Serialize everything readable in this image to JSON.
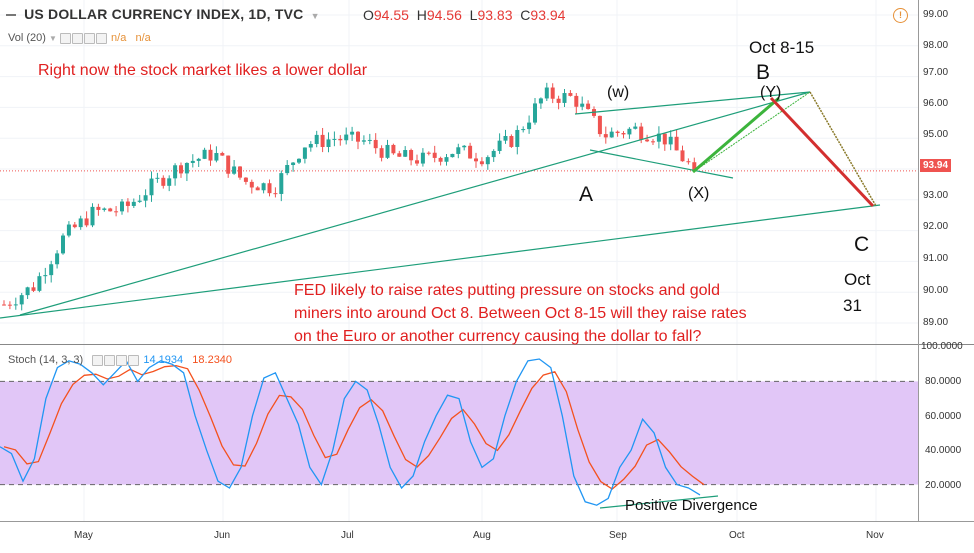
{
  "header": {
    "symbol_title": "US DOLLAR CURRENCY INDEX, 1D, TVC",
    "open_label": "O",
    "open_value": "94.55",
    "high_label": "H",
    "high_value": "94.56",
    "low_label": "L",
    "low_value": "93.83",
    "close_label": "C",
    "close_value": "93.94",
    "volume_label": "Vol (20)",
    "volume_values": [
      "n/a",
      "n/a"
    ]
  },
  "price_axis": {
    "ticks": [
      "99.00",
      "98.00",
      "97.00",
      "96.00",
      "95.00",
      "94.00",
      "93.00",
      "92.00",
      "91.00",
      "90.00",
      "89.00"
    ],
    "last_price_tag": "93.94"
  },
  "stoch_axis": {
    "ticks": [
      "100.0000",
      "80.0000",
      "60.0000",
      "40.0000",
      "20.0000"
    ]
  },
  "time_axis": {
    "ticks": [
      "May",
      "Jun",
      "Jul",
      "Aug",
      "Sep",
      "Oct",
      "Nov"
    ]
  },
  "stoch_header": {
    "label": "Stoch (14, 3, 3)",
    "k_value": "14.1934",
    "d_value": "18.2340"
  },
  "annotations": {
    "top_note": "Right now the stock market likes a lower dollar",
    "fed_note_lines": [
      "FED likely to raise rates putting pressure on stocks and gold",
      "miners into around Oct 8.  Between Oct 8-15 will they raise rates",
      "on the Euro or another currency causing the dollar to fall?"
    ],
    "wave_w": "(w)",
    "wave_x": "(X)",
    "wave_y": "(Y)",
    "wave_a": "A",
    "wave_b": "B",
    "wave_c": "C",
    "b_date": "Oct 8-15",
    "c_date_line1": "Oct",
    "c_date_line2": "31",
    "divergence": "Positive Divergence"
  },
  "colors": {
    "up_candle": "#26a69a",
    "down_candle": "#ef5350",
    "stoch_k": "#2196f3",
    "stoch_d": "#f4511e",
    "stoch_band": "#e1c6f7",
    "trend_line": "#1e9e7a",
    "projection_up": "#3cb43c",
    "projection_down": "#d32f2f",
    "annotation_red": "#e02020"
  },
  "chart_data": [
    {
      "type": "candlestick",
      "series_name": "US DOLLAR CURRENCY INDEX, 1D, TVC",
      "ylim": [
        88.5,
        99.5
      ],
      "x_ticks": [
        "May",
        "Jun",
        "Jul",
        "Aug",
        "Sep",
        "Oct",
        "Nov"
      ],
      "approx_close_path": [
        {
          "date": "Apr-13",
          "close": 89.6
        },
        {
          "date": "Apr-20",
          "close": 90.2
        },
        {
          "date": "Apr-27",
          "close": 91.8
        },
        {
          "date": "May-04",
          "close": 92.6
        },
        {
          "date": "May-11",
          "close": 92.7
        },
        {
          "date": "May-18",
          "close": 93.5
        },
        {
          "date": "May-25",
          "close": 94.2
        },
        {
          "date": "Jun-01",
          "close": 94.5
        },
        {
          "date": "Jun-08",
          "close": 93.6
        },
        {
          "date": "Jun-15",
          "close": 93.4
        },
        {
          "date": "Jun-22",
          "close": 94.8
        },
        {
          "date": "Jun-29",
          "close": 95.0
        },
        {
          "date": "Jul-06",
          "close": 94.9
        },
        {
          "date": "Jul-13",
          "close": 94.4
        },
        {
          "date": "Jul-20",
          "close": 94.3
        },
        {
          "date": "Jul-27",
          "close": 94.6
        },
        {
          "date": "Aug-03",
          "close": 94.4
        },
        {
          "date": "Aug-10",
          "close": 95.0
        },
        {
          "date": "Aug-17",
          "close": 96.4
        },
        {
          "date": "Aug-24",
          "close": 96.3
        },
        {
          "date": "Aug-31",
          "close": 95.1
        },
        {
          "date": "Sep-07",
          "close": 95.3
        },
        {
          "date": "Sep-14",
          "close": 95.0
        },
        {
          "date": "Sep-21",
          "close": 93.94
        }
      ],
      "last": {
        "open": 94.55,
        "high": 94.56,
        "low": 93.83,
        "close": 93.94
      }
    },
    {
      "type": "line",
      "title": "Stoch (14, 3, 3)",
      "ylim": [
        0,
        100
      ],
      "reference_lines": [
        20,
        80
      ],
      "series": [
        {
          "name": "%K",
          "last": 14.1934
        },
        {
          "name": "%D",
          "last": 18.234
        }
      ]
    }
  ]
}
